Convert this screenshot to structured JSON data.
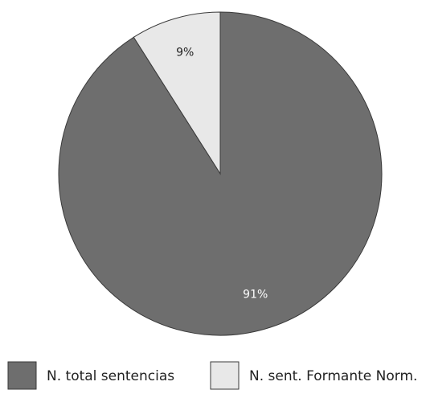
{
  "chart_data": {
    "type": "pie",
    "categories": [
      "N. total sentencias",
      "N. sent. Formante Norm."
    ],
    "values": [
      91,
      9
    ],
    "value_labels": [
      "91%",
      "9%"
    ],
    "colors": [
      "#6e6e6e",
      "#e8e8e8"
    ],
    "legend": "bottom"
  }
}
